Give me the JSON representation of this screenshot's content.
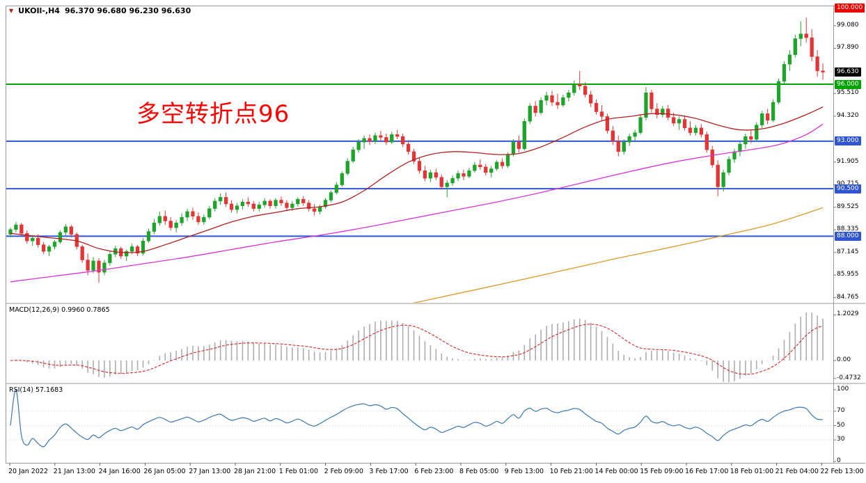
{
  "header": {
    "title": "UKOIl-,H4",
    "ohlc": "96.370 96.680 96.230 96.630"
  },
  "annotation": {
    "text": "多空转折点96",
    "color": "#ff0000"
  },
  "macd": {
    "label": "MACD(12,26,9) 0.9960 0.7865",
    "params": [
      12,
      26,
      9
    ],
    "value_main": 0.996,
    "value_signal": 0.7865,
    "axis_labels": [
      {
        "text": "1.2029",
        "value": 1.2029
      },
      {
        "text": "0.00",
        "value": 0
      },
      {
        "text": "-0.4732",
        "value": -0.4732
      }
    ]
  },
  "rsi": {
    "label": "RSI(14) 57.1683",
    "period": 14,
    "value": 57.1683,
    "levels": [
      70,
      50,
      30
    ],
    "axis_labels": [
      {
        "text": "100",
        "value": 100
      },
      {
        "text": "70",
        "value": 70
      },
      {
        "text": "50",
        "value": 50
      },
      {
        "text": "30",
        "value": 30
      },
      {
        "text": "0",
        "value": 0
      }
    ]
  },
  "colors": {
    "up": "#1fa32a",
    "down": "#e23636",
    "macd_hist": "#adadad",
    "macd_signal": "#d02a2a",
    "rsi_line": "#3b77af",
    "border": "#9a9a9a"
  },
  "chart_data": {
    "type": "candlestick",
    "symbol": "UKOIl-",
    "timeframe": "H4",
    "y_ticks": [
      {
        "text": "99.080",
        "value": 99.08
      },
      {
        "text": "97.890",
        "value": 97.89
      },
      {
        "text": "95.510",
        "value": 95.51
      },
      {
        "text": "94.320",
        "value": 94.32
      },
      {
        "text": "91.905",
        "value": 91.905
      },
      {
        "text": "90.715",
        "value": 90.715
      },
      {
        "text": "89.525",
        "value": 89.525
      },
      {
        "text": "88.335",
        "value": 88.335
      },
      {
        "text": "87.145",
        "value": 87.145
      },
      {
        "text": "85.955",
        "value": 85.955
      },
      {
        "text": "84.765",
        "value": 84.765
      }
    ],
    "price_lines": [
      {
        "value": 96.0,
        "label": "96.000",
        "color": "#00a400"
      },
      {
        "value": 93.0,
        "label": "93.000",
        "color": "#2f55d4"
      },
      {
        "value": 90.5,
        "label": "90.500",
        "color": "#2f55d4"
      },
      {
        "value": 88.0,
        "label": "88.000",
        "color": "#2f55d4"
      }
    ],
    "price_markers": [
      {
        "value": 100.0,
        "label": "100.000",
        "bg": "#ee0000"
      },
      {
        "value": 96.63,
        "label": "96.630",
        "bg": "#000000"
      }
    ],
    "x_ticks": [
      "20 Jan 2022",
      "21 Jan 13:00",
      "24 Jan 16:00",
      "26 Jan 05:00",
      "27 Jan 13:00",
      "28 Jan 21:00",
      "1 Feb 01:00",
      "2 Feb 09:00",
      "3 Feb 17:00",
      "6 Feb 23:00",
      "8 Feb 05:00",
      "9 Feb 13:00",
      "10 Feb 21:00",
      "14 Feb 00:00",
      "15 Feb 09:00",
      "16 Feb 17:00",
      "18 Feb 01:00",
      "21 Feb 04:00",
      "22 Feb 13:00"
    ],
    "candles": [
      [
        88.1,
        88.45,
        87.95,
        88.35
      ],
      [
        88.35,
        88.75,
        88.2,
        88.6
      ],
      [
        88.6,
        88.7,
        88.0,
        88.15
      ],
      [
        88.15,
        88.3,
        87.6,
        87.75
      ],
      [
        87.75,
        88.05,
        87.5,
        87.9
      ],
      [
        87.9,
        88.1,
        87.4,
        87.55
      ],
      [
        87.55,
        87.7,
        87.05,
        87.2
      ],
      [
        87.2,
        87.55,
        86.95,
        87.45
      ],
      [
        87.45,
        87.8,
        87.3,
        87.7
      ],
      [
        87.7,
        88.3,
        87.6,
        88.2
      ],
      [
        88.2,
        88.65,
        88.05,
        88.5
      ],
      [
        88.5,
        88.6,
        87.95,
        88.1
      ],
      [
        88.1,
        88.2,
        87.3,
        87.45
      ],
      [
        87.45,
        87.55,
        86.6,
        86.75
      ],
      [
        86.75,
        87.1,
        85.95,
        86.2
      ],
      [
        86.2,
        86.9,
        86.05,
        86.7
      ],
      [
        86.7,
        86.85,
        85.55,
        86.1
      ],
      [
        86.1,
        86.75,
        85.95,
        86.6
      ],
      [
        86.6,
        87.2,
        86.45,
        87.05
      ],
      [
        87.05,
        87.5,
        86.9,
        87.35
      ],
      [
        87.35,
        87.45,
        86.8,
        86.95
      ],
      [
        86.95,
        87.3,
        86.7,
        87.2
      ],
      [
        87.2,
        87.6,
        87.05,
        87.45
      ],
      [
        87.45,
        87.55,
        86.95,
        87.1
      ],
      [
        87.1,
        87.9,
        87.0,
        87.75
      ],
      [
        87.75,
        88.4,
        87.65,
        88.25
      ],
      [
        88.25,
        88.9,
        88.1,
        88.7
      ],
      [
        88.7,
        89.3,
        88.55,
        89.05
      ],
      [
        89.05,
        89.35,
        88.6,
        88.8
      ],
      [
        88.8,
        89.0,
        88.3,
        88.45
      ],
      [
        88.45,
        88.85,
        88.2,
        88.7
      ],
      [
        88.7,
        89.2,
        88.55,
        89.0
      ],
      [
        89.0,
        89.45,
        88.8,
        89.3
      ],
      [
        89.3,
        89.5,
        88.85,
        89.05
      ],
      [
        89.05,
        89.25,
        88.6,
        88.75
      ],
      [
        88.75,
        89.15,
        88.6,
        89.0
      ],
      [
        89.0,
        89.6,
        88.9,
        89.45
      ],
      [
        89.45,
        90.0,
        89.3,
        89.85
      ],
      [
        89.85,
        90.25,
        89.65,
        90.05
      ],
      [
        90.05,
        90.3,
        89.55,
        89.7
      ],
      [
        89.7,
        89.9,
        89.25,
        89.4
      ],
      [
        89.4,
        89.75,
        89.2,
        89.6
      ],
      [
        89.6,
        89.95,
        89.4,
        89.8
      ],
      [
        89.8,
        90.05,
        89.55,
        89.7
      ],
      [
        89.7,
        89.85,
        89.3,
        89.45
      ],
      [
        89.45,
        89.8,
        89.3,
        89.65
      ],
      [
        89.65,
        90.0,
        89.5,
        89.85
      ],
      [
        89.85,
        89.95,
        89.45,
        89.6
      ],
      [
        89.6,
        90.0,
        89.45,
        89.9
      ],
      [
        89.9,
        90.1,
        89.6,
        89.75
      ],
      [
        89.75,
        89.9,
        89.35,
        89.5
      ],
      [
        89.5,
        89.85,
        89.35,
        89.7
      ],
      [
        89.7,
        90.05,
        89.55,
        89.95
      ],
      [
        89.95,
        90.1,
        89.6,
        89.75
      ],
      [
        89.75,
        89.9,
        89.3,
        89.45
      ],
      [
        89.45,
        89.7,
        89.1,
        89.3
      ],
      [
        89.3,
        89.65,
        89.15,
        89.55
      ],
      [
        89.55,
        90.0,
        89.45,
        89.9
      ],
      [
        89.9,
        90.4,
        89.8,
        90.3
      ],
      [
        90.3,
        90.85,
        90.2,
        90.7
      ],
      [
        90.7,
        91.4,
        90.6,
        91.3
      ],
      [
        91.3,
        92.1,
        91.2,
        91.95
      ],
      [
        91.95,
        92.7,
        91.85,
        92.55
      ],
      [
        92.55,
        93.1,
        92.4,
        92.95
      ],
      [
        92.95,
        93.3,
        92.6,
        93.15
      ],
      [
        93.15,
        93.35,
        92.8,
        93.0
      ],
      [
        93.0,
        93.45,
        92.85,
        93.3
      ],
      [
        93.3,
        93.55,
        93.0,
        93.2
      ],
      [
        93.2,
        93.4,
        92.8,
        92.95
      ],
      [
        92.95,
        93.5,
        92.85,
        93.35
      ],
      [
        93.35,
        93.6,
        93.1,
        93.25
      ],
      [
        93.25,
        93.4,
        92.7,
        92.85
      ],
      [
        92.85,
        93.05,
        92.3,
        92.45
      ],
      [
        92.45,
        92.6,
        91.8,
        91.95
      ],
      [
        91.95,
        92.15,
        91.3,
        91.45
      ],
      [
        91.45,
        91.7,
        90.9,
        91.05
      ],
      [
        91.05,
        91.5,
        90.85,
        91.35
      ],
      [
        91.35,
        91.55,
        90.95,
        91.1
      ],
      [
        91.1,
        91.25,
        90.45,
        90.6
      ],
      [
        90.6,
        90.95,
        90.05,
        90.8
      ],
      [
        90.8,
        91.2,
        90.65,
        91.05
      ],
      [
        91.05,
        91.45,
        90.9,
        91.3
      ],
      [
        91.3,
        91.5,
        90.95,
        91.15
      ],
      [
        91.15,
        91.6,
        91.05,
        91.45
      ],
      [
        91.45,
        91.9,
        91.35,
        91.75
      ],
      [
        91.75,
        92.05,
        91.5,
        91.65
      ],
      [
        91.65,
        91.8,
        91.2,
        91.35
      ],
      [
        91.35,
        91.7,
        91.1,
        91.55
      ],
      [
        91.55,
        92.0,
        91.45,
        91.9
      ],
      [
        91.9,
        92.1,
        91.55,
        91.7
      ],
      [
        91.7,
        92.4,
        91.6,
        92.3
      ],
      [
        92.3,
        93.1,
        92.2,
        92.95
      ],
      [
        92.95,
        93.3,
        92.4,
        92.6
      ],
      [
        92.6,
        94.2,
        92.5,
        94.05
      ],
      [
        94.05,
        95.0,
        93.9,
        94.85
      ],
      [
        94.85,
        95.1,
        94.3,
        94.5
      ],
      [
        94.5,
        95.3,
        94.4,
        95.15
      ],
      [
        95.15,
        95.6,
        94.9,
        95.4
      ],
      [
        95.4,
        95.65,
        94.85,
        95.05
      ],
      [
        95.05,
        95.5,
        94.7,
        94.9
      ],
      [
        94.9,
        95.45,
        94.8,
        95.3
      ],
      [
        95.3,
        95.7,
        95.1,
        95.55
      ],
      [
        95.55,
        96.2,
        95.4,
        96.0
      ],
      [
        96.0,
        96.7,
        95.7,
        95.9
      ],
      [
        95.9,
        96.1,
        95.3,
        95.45
      ],
      [
        95.45,
        95.65,
        94.8,
        95.0
      ],
      [
        95.0,
        95.2,
        94.4,
        94.55
      ],
      [
        94.55,
        94.9,
        94.1,
        94.3
      ],
      [
        94.3,
        94.45,
        93.4,
        93.55
      ],
      [
        93.55,
        93.8,
        92.8,
        93.0
      ],
      [
        93.0,
        93.3,
        92.2,
        92.45
      ],
      [
        92.45,
        93.1,
        92.3,
        92.95
      ],
      [
        92.95,
        93.4,
        92.75,
        93.25
      ],
      [
        93.25,
        93.6,
        93.0,
        93.45
      ],
      [
        93.45,
        94.4,
        93.35,
        94.25
      ],
      [
        94.25,
        95.85,
        94.1,
        95.55
      ],
      [
        95.55,
        95.7,
        94.5,
        94.7
      ],
      [
        94.7,
        95.0,
        94.2,
        94.4
      ],
      [
        94.4,
        94.85,
        94.25,
        94.7
      ],
      [
        94.7,
        94.9,
        94.1,
        94.25
      ],
      [
        94.25,
        94.5,
        93.8,
        93.95
      ],
      [
        93.95,
        94.3,
        93.6,
        94.15
      ],
      [
        94.15,
        94.35,
        93.55,
        93.7
      ],
      [
        93.7,
        94.05,
        93.3,
        93.45
      ],
      [
        93.45,
        93.85,
        93.3,
        93.7
      ],
      [
        93.7,
        93.9,
        93.2,
        93.35
      ],
      [
        93.35,
        93.5,
        92.4,
        92.55
      ],
      [
        92.55,
        92.75,
        91.6,
        91.75
      ],
      [
        91.75,
        92.0,
        90.1,
        90.6
      ],
      [
        90.6,
        91.5,
        90.35,
        91.35
      ],
      [
        91.35,
        92.2,
        91.2,
        92.05
      ],
      [
        92.05,
        92.6,
        91.85,
        92.45
      ],
      [
        92.45,
        93.0,
        92.2,
        92.85
      ],
      [
        92.85,
        93.4,
        92.6,
        93.25
      ],
      [
        93.25,
        93.6,
        92.9,
        93.1
      ],
      [
        93.1,
        94.0,
        93.0,
        93.85
      ],
      [
        93.85,
        94.6,
        93.7,
        94.45
      ],
      [
        94.45,
        94.7,
        93.9,
        94.1
      ],
      [
        94.1,
        95.2,
        94.0,
        95.05
      ],
      [
        95.05,
        96.3,
        94.95,
        96.15
      ],
      [
        96.15,
        97.2,
        96.0,
        97.05
      ],
      [
        97.05,
        97.8,
        96.7,
        97.55
      ],
      [
        97.55,
        98.6,
        97.4,
        98.4
      ],
      [
        98.4,
        99.3,
        98.0,
        98.65
      ],
      [
        98.65,
        99.5,
        98.2,
        98.45
      ],
      [
        98.45,
        98.9,
        97.2,
        97.45
      ],
      [
        97.45,
        97.8,
        96.4,
        96.7
      ],
      [
        96.7,
        97.1,
        96.23,
        96.63
      ]
    ],
    "overlays": [
      {
        "name": "ma-fast",
        "color": "#b02020",
        "points": [
          [
            0,
            88.15
          ],
          [
            6,
            87.95
          ],
          [
            12,
            87.75
          ],
          [
            16,
            87.35
          ],
          [
            20,
            87.15
          ],
          [
            24,
            87.2
          ],
          [
            28,
            87.55
          ],
          [
            32,
            87.95
          ],
          [
            36,
            88.35
          ],
          [
            40,
            88.75
          ],
          [
            44,
            89.05
          ],
          [
            48,
            89.25
          ],
          [
            52,
            89.45
          ],
          [
            56,
            89.55
          ],
          [
            60,
            89.8
          ],
          [
            64,
            90.4
          ],
          [
            68,
            91.2
          ],
          [
            72,
            91.9
          ],
          [
            76,
            92.3
          ],
          [
            80,
            92.45
          ],
          [
            84,
            92.4
          ],
          [
            88,
            92.3
          ],
          [
            92,
            92.35
          ],
          [
            96,
            92.7
          ],
          [
            100,
            93.2
          ],
          [
            104,
            93.75
          ],
          [
            108,
            94.15
          ],
          [
            112,
            94.3
          ],
          [
            116,
            94.45
          ],
          [
            120,
            94.4
          ],
          [
            124,
            94.2
          ],
          [
            128,
            93.85
          ],
          [
            132,
            93.6
          ],
          [
            136,
            93.65
          ],
          [
            140,
            93.95
          ],
          [
            144,
            94.4
          ],
          [
            147,
            94.8
          ]
        ]
      },
      {
        "name": "ma-mid",
        "color": "#d435d4",
        "points": [
          [
            0,
            85.6
          ],
          [
            8,
            85.9
          ],
          [
            16,
            86.2
          ],
          [
            24,
            86.55
          ],
          [
            32,
            86.9
          ],
          [
            40,
            87.3
          ],
          [
            48,
            87.7
          ],
          [
            56,
            88.05
          ],
          [
            64,
            88.45
          ],
          [
            72,
            88.9
          ],
          [
            80,
            89.35
          ],
          [
            88,
            89.8
          ],
          [
            96,
            90.3
          ],
          [
            104,
            90.85
          ],
          [
            112,
            91.4
          ],
          [
            120,
            91.9
          ],
          [
            128,
            92.3
          ],
          [
            136,
            92.65
          ],
          [
            140,
            92.9
          ],
          [
            144,
            93.35
          ],
          [
            147,
            93.9
          ]
        ]
      },
      {
        "name": "ma-slow",
        "color": "#d99a2b",
        "points": [
          [
            70,
            84.3
          ],
          [
            78,
            84.8
          ],
          [
            90,
            85.55
          ],
          [
            100,
            86.2
          ],
          [
            110,
            86.85
          ],
          [
            120,
            87.45
          ],
          [
            130,
            88.1
          ],
          [
            138,
            88.65
          ],
          [
            147,
            89.5
          ]
        ]
      }
    ]
  }
}
